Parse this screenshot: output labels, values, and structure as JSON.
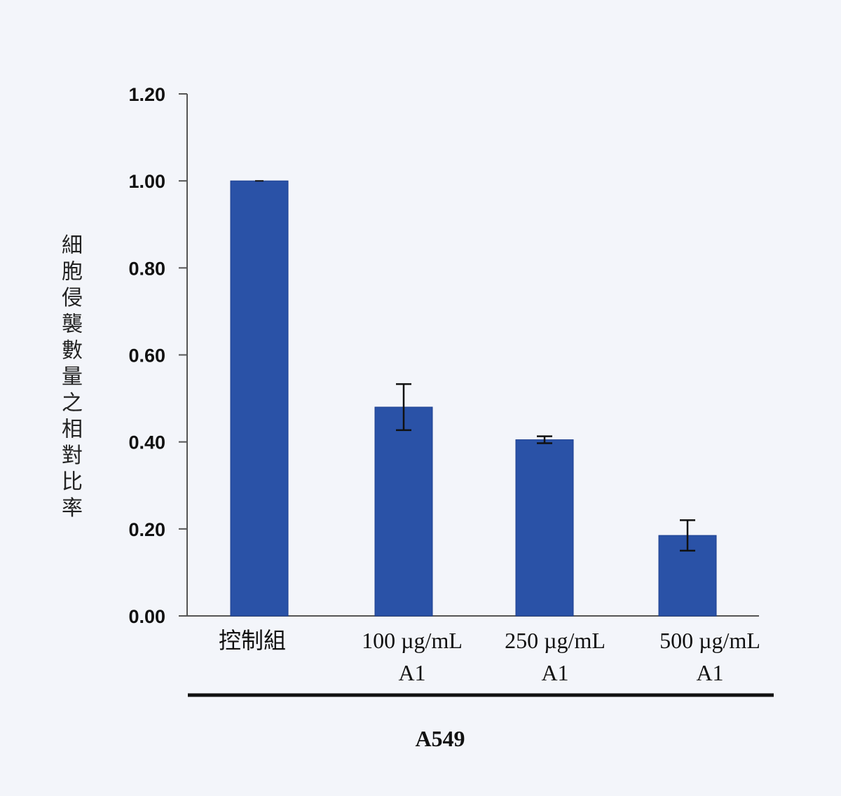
{
  "chart_data": {
    "type": "bar",
    "title": "",
    "xlabel": "",
    "ylabel": "細胞侵襲數量之相對比率",
    "group_label": "A549",
    "categories": [
      [
        "控制組"
      ],
      [
        "100 µg/mL",
        "A1"
      ],
      [
        "250 µg/mL",
        "A1"
      ],
      [
        "500 µg/mL",
        "A1"
      ]
    ],
    "values": [
      1.0,
      0.48,
      0.405,
      0.185
    ],
    "error": [
      0.0,
      0.053,
      0.008,
      0.035
    ],
    "ylim": [
      0,
      1.2
    ],
    "yticks": [
      "0.00",
      "0.20",
      "0.40",
      "0.60",
      "0.80",
      "1.00",
      "1.20"
    ],
    "grid": false,
    "legend": "none",
    "colors": {
      "bar": "#2a52a7",
      "bar_edge": "#1c3f8f",
      "axis": "#555555",
      "error": "#111111"
    }
  }
}
